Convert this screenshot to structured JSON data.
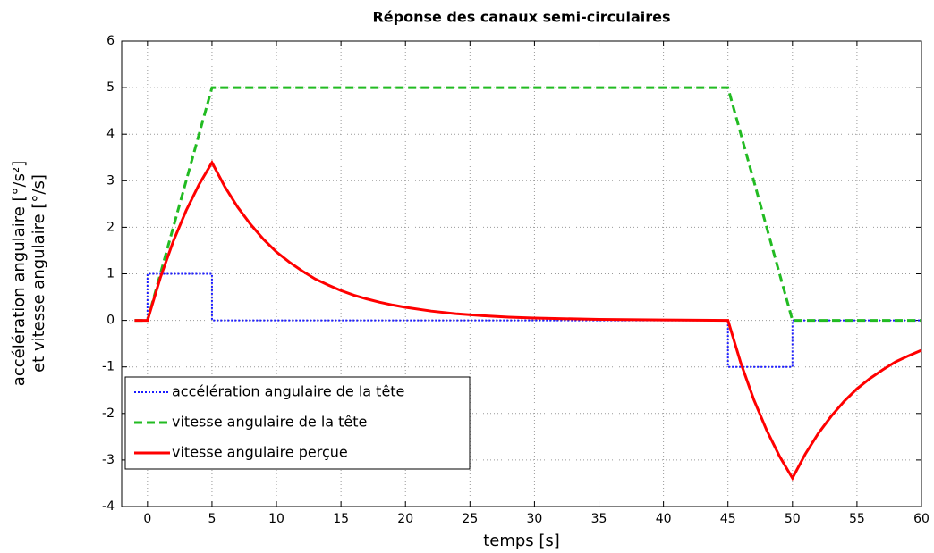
{
  "chart_data": {
    "type": "line",
    "title": "Réponse des canaux semi-circulaires",
    "xlabel": "temps [s]",
    "ylabel": [
      "accélération angulaire [°/s²]",
      "et vitesse angulaire [°/s]"
    ],
    "xlim": [
      -2,
      60
    ],
    "xticks": [
      0,
      5,
      10,
      15,
      20,
      25,
      30,
      35,
      40,
      45,
      50,
      55,
      60
    ],
    "ylim": [
      -4,
      6
    ],
    "yticks": [
      -4,
      -3,
      -2,
      -1,
      0,
      1,
      2,
      3,
      4,
      5,
      6
    ],
    "grid": true,
    "legend": "lower left",
    "series": [
      {
        "name": "accélération angulaire de la tête",
        "color": "#1a1aff",
        "dash": "dotted",
        "x": [
          -1,
          0,
          0,
          5,
          5,
          45,
          45,
          50,
          50,
          60
        ],
        "values": [
          0,
          0,
          1,
          1,
          0,
          0,
          -1,
          -1,
          0,
          0
        ]
      },
      {
        "name": "vitesse angulaire de la tête",
        "color": "#22bb22",
        "dash": "dashed",
        "x": [
          -1,
          0,
          5,
          45,
          50,
          60
        ],
        "values": [
          0,
          0,
          5,
          5,
          0,
          0
        ]
      },
      {
        "name": "vitesse angulaire perçue",
        "color": "#ff0000",
        "dash": "solid",
        "x": [
          -1,
          0,
          1,
          2,
          3,
          4,
          5,
          6,
          7,
          8,
          9,
          10,
          11,
          12,
          13,
          14,
          15,
          16,
          17,
          18,
          19,
          20,
          22,
          24,
          26,
          28,
          30,
          35,
          40,
          45,
          46,
          47,
          48,
          49,
          50,
          51,
          52,
          53,
          54,
          55,
          56,
          57,
          58,
          59,
          60
        ],
        "values": [
          0,
          0,
          0.92,
          1.7,
          2.36,
          2.92,
          3.39,
          2.87,
          2.43,
          2.06,
          1.74,
          1.47,
          1.25,
          1.06,
          0.89,
          0.76,
          0.64,
          0.54,
          0.46,
          0.39,
          0.33,
          0.28,
          0.2,
          0.14,
          0.1,
          0.07,
          0.05,
          0.02,
          0.01,
          0,
          -0.92,
          -1.7,
          -2.36,
          -2.92,
          -3.39,
          -2.87,
          -2.43,
          -2.06,
          -1.74,
          -1.47,
          -1.25,
          -1.06,
          -0.89,
          -0.76,
          -0.64
        ]
      }
    ]
  }
}
